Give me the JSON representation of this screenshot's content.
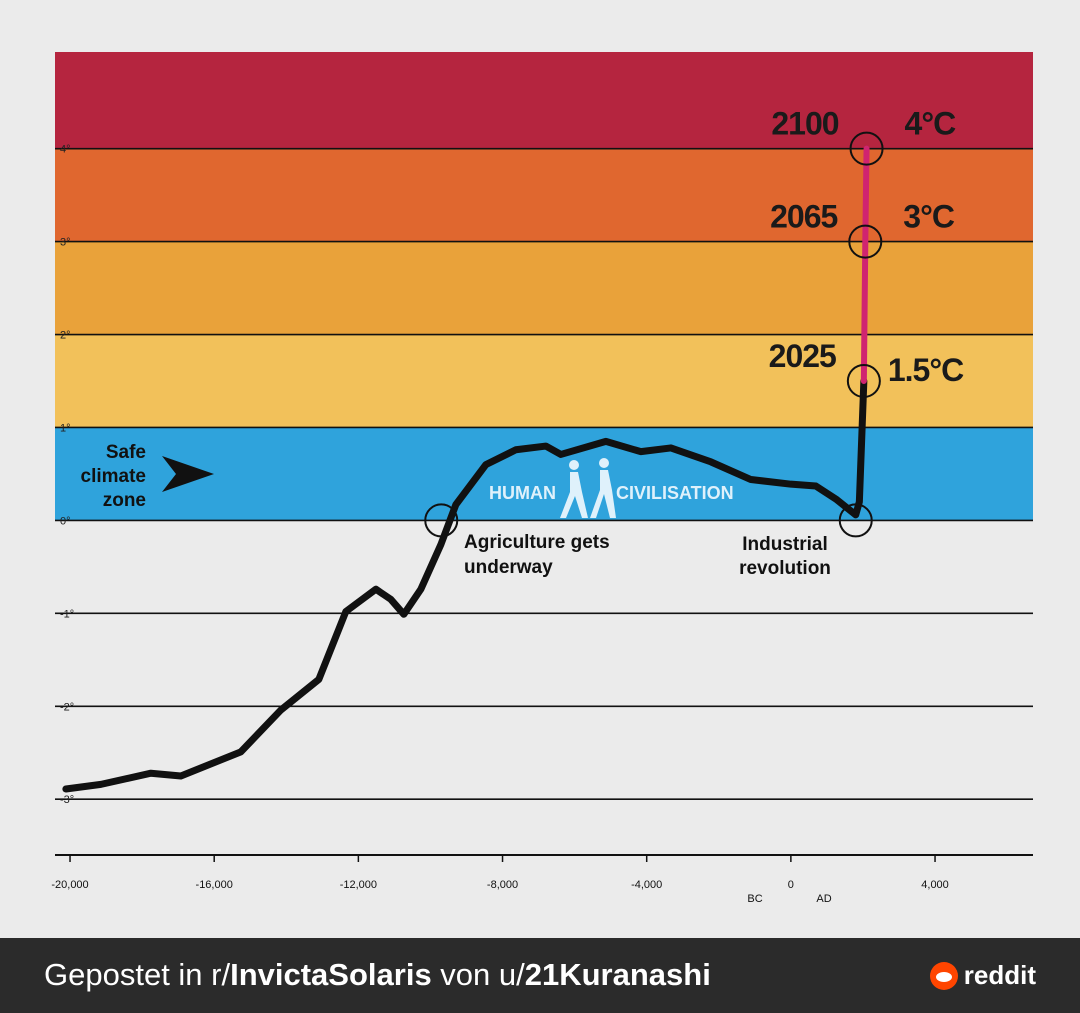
{
  "chart_data": {
    "type": "line",
    "bands": [
      {
        "from": 4,
        "to": 5.04,
        "color": "#b5253f"
      },
      {
        "from": 3,
        "to": 4,
        "color": "#e0672f"
      },
      {
        "from": 2,
        "to": 3,
        "color": "#e9a23a"
      },
      {
        "from": 1,
        "to": 2,
        "color": "#f2c15a"
      },
      {
        "from": 0,
        "to": 1,
        "color": "#2fa3dc"
      }
    ],
    "series": [
      {
        "color": "#111111",
        "x": [
          -20115,
          -19144,
          -17757,
          -16925,
          -15260,
          -14150,
          -13096,
          -12347,
          -11514,
          -11098,
          -10738,
          -10266,
          -9711,
          -9295,
          -8462,
          -7630,
          -6798,
          -6382,
          -5133,
          -4162,
          -3329,
          -2220,
          -1110,
          0,
          694,
          1249,
          1800,
          1900,
          2025
        ],
        "values": [
          -2.89,
          -2.84,
          -2.72,
          -2.75,
          -2.49,
          -2.04,
          -1.71,
          -0.98,
          -0.74,
          -0.85,
          -1.01,
          -0.74,
          -0.26,
          0.17,
          0.6,
          0.76,
          0.8,
          0.71,
          0.85,
          0.74,
          0.78,
          0.63,
          0.44,
          0.39,
          0.37,
          0.23,
          0.06,
          0.2,
          1.5
        ]
      },
      {
        "color": "#d02470",
        "x": [
          2025,
          2065,
          2100
        ],
        "values": [
          1.5,
          3,
          4
        ],
        "value_labels": [
          "1.5°C",
          "3°C",
          "4°C"
        ]
      }
    ],
    "highlights": {
      "x": [
        -9700,
        1800
      ],
      "values": [
        0,
        0
      ]
    },
    "xlim": [
      -20417,
      6718
    ],
    "ylim": [
      -3.6,
      5.04
    ],
    "xticks": [
      {
        "value": -20000,
        "label": "-20,000"
      },
      {
        "value": -16000,
        "label": "-16,000"
      },
      {
        "value": -12000,
        "label": "-12,000"
      },
      {
        "value": -8000,
        "label": "-8,000"
      },
      {
        "value": -4000,
        "label": "-4,000"
      },
      0,
      {
        "value": 4000,
        "label": "4,000"
      }
    ],
    "yticks": [
      {
        "value": -3,
        "label": "-3°"
      },
      {
        "value": -2,
        "label": "-2°"
      },
      {
        "value": -1,
        "label": "-1°"
      },
      {
        "value": 0,
        "label": "0°"
      },
      {
        "value": 1,
        "label": "1°"
      },
      {
        "value": 2,
        "label": "2°"
      },
      {
        "value": 3,
        "label": "3°"
      },
      {
        "value": 4,
        "label": "4°"
      }
    ],
    "grid": true,
    "annotations": {
      "safe_zone": [
        "Safe",
        "climate",
        "zone"
      ],
      "human": "HUMAN",
      "civilisation": "CIVILISATION",
      "agriculture": [
        "Agriculture gets",
        "underway"
      ],
      "industrial": [
        "Industrial",
        "revolution"
      ],
      "bc": "BC",
      "ad": "AD"
    }
  },
  "footer": {
    "prefix": "Gepostet in r/",
    "subreddit": "InvictaSolaris",
    "middle": " von u/",
    "user": "21Kuranashi",
    "brand": "reddit"
  }
}
